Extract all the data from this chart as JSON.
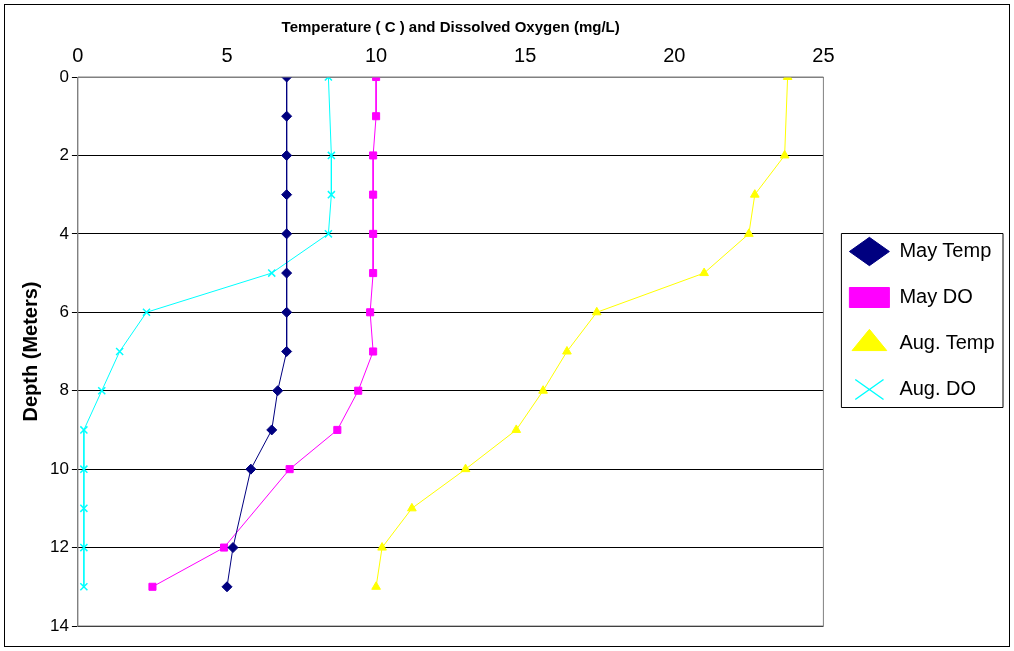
{
  "chart_data": {
    "type": "line",
    "xlabel": "Temperature ( C ) and Dissolved Oxygen (mg/L)",
    "ylabel": "Depth (Meters)",
    "xlim": [
      0,
      25
    ],
    "xticks": [
      0,
      5,
      10,
      15,
      20,
      25
    ],
    "ylim": [
      14,
      0
    ],
    "yticks": [
      0,
      2,
      4,
      6,
      8,
      10,
      12,
      14
    ],
    "grid": "y",
    "legend": "right",
    "series": [
      {
        "name": "May Temp",
        "color": "#000080",
        "marker": "diamond",
        "x": [
          7.0,
          7.0,
          7.0,
          7.0,
          7.0,
          7.0,
          7.0,
          7.0,
          6.7,
          6.5,
          5.8,
          5.2,
          5.0
        ],
        "values": [
          0,
          1,
          2,
          3,
          4,
          5,
          6,
          7,
          8,
          9,
          10,
          12,
          13
        ]
      },
      {
        "name": "May DO",
        "color": "#ff00ff",
        "marker": "square",
        "x": [
          10.0,
          10.0,
          9.9,
          9.9,
          9.9,
          9.9,
          9.8,
          9.9,
          9.4,
          8.7,
          7.1,
          4.9,
          2.5
        ],
        "values": [
          0,
          1,
          2,
          3,
          4,
          5,
          6,
          7,
          8,
          9,
          10,
          12,
          13
        ]
      },
      {
        "name": "Aug. Temp",
        "color": "#ffff00",
        "marker": "triangle",
        "x": [
          23.8,
          23.7,
          22.7,
          22.5,
          21.0,
          17.4,
          16.4,
          15.6,
          14.7,
          13.0,
          11.2,
          10.2,
          10.0
        ],
        "values": [
          0,
          2,
          3,
          4,
          5,
          6,
          7,
          8,
          9,
          10,
          11,
          12,
          13
        ]
      },
      {
        "name": "Aug. DO",
        "color": "#00ffff",
        "marker": "cross",
        "x": [
          8.4,
          8.5,
          8.5,
          8.4,
          6.5,
          2.3,
          1.4,
          0.8,
          0.2,
          0.2,
          0.2,
          0.2,
          0.2
        ],
        "values": [
          0,
          2,
          3,
          4,
          5,
          6,
          7,
          8,
          9,
          10,
          11,
          12,
          13
        ]
      }
    ]
  }
}
